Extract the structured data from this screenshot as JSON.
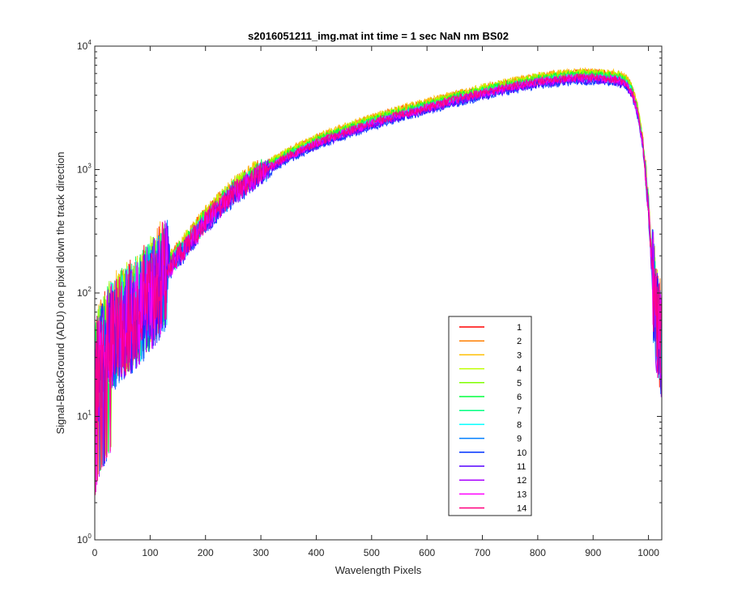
{
  "chart_data": {
    "type": "line",
    "title": "s2016051211_img.mat int time = 1 sec  NaN nm BS02",
    "xlabel": "Wavelength Pixels",
    "ylabel": "Signal-BackGround (ADU) one pixel down the track direction",
    "xlim": [
      0,
      1024
    ],
    "ylim": [
      1,
      10000
    ],
    "yscale": "log",
    "grid": false,
    "legend_position": "lower-right",
    "x_ticks": [
      "0",
      "100",
      "200",
      "300",
      "400",
      "500",
      "600",
      "700",
      "800",
      "900",
      "1000"
    ],
    "y_ticks": [
      {
        "base": "10",
        "exp": "0"
      },
      {
        "base": "10",
        "exp": "1"
      },
      {
        "base": "10",
        "exp": "2"
      },
      {
        "base": "10",
        "exp": "3"
      },
      {
        "base": "10",
        "exp": "4"
      }
    ],
    "x": [
      0,
      5,
      10,
      20,
      30,
      40,
      50,
      60,
      80,
      100,
      120,
      150,
      200,
      250,
      300,
      350,
      400,
      450,
      500,
      550,
      600,
      650,
      700,
      750,
      800,
      850,
      880,
      900,
      930,
      950,
      960,
      970,
      980,
      990,
      1000,
      1005,
      1010,
      1015,
      1020,
      1023
    ],
    "base_values": [
      18,
      25,
      30,
      38,
      45,
      50,
      55,
      60,
      72,
      95,
      130,
      200,
      380,
      650,
      950,
      1300,
      1650,
      2000,
      2400,
      2800,
      3200,
      3700,
      4200,
      4700,
      5200,
      5500,
      5600,
      5600,
      5500,
      5300,
      5000,
      4300,
      3000,
      1600,
      500,
      200,
      100,
      60,
      45,
      40
    ],
    "series": [
      {
        "name": "1",
        "color": "#ff0000",
        "scale": 1.07
      },
      {
        "name": "2",
        "color": "#ff7f00",
        "scale": 1.09
      },
      {
        "name": "3",
        "color": "#ffbf00",
        "scale": 1.1
      },
      {
        "name": "4",
        "color": "#bfff00",
        "scale": 1.08
      },
      {
        "name": "5",
        "color": "#7fff00",
        "scale": 1.06
      },
      {
        "name": "6",
        "color": "#00ff3f",
        "scale": 1.04
      },
      {
        "name": "7",
        "color": "#00ff7f",
        "scale": 1.01
      },
      {
        "name": "8",
        "color": "#00ffff",
        "scale": 0.99
      },
      {
        "name": "9",
        "color": "#007fff",
        "scale": 0.96
      },
      {
        "name": "10",
        "color": "#0033ff",
        "scale": 0.93
      },
      {
        "name": "11",
        "color": "#5500ff",
        "scale": 0.95
      },
      {
        "name": "12",
        "color": "#aa00ff",
        "scale": 0.97
      },
      {
        "name": "13",
        "color": "#ff00ff",
        "scale": 0.99
      },
      {
        "name": "14",
        "color": "#ff007f",
        "scale": 1.0
      }
    ]
  }
}
